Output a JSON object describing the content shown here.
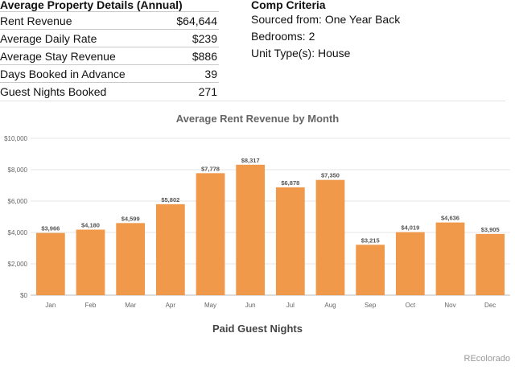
{
  "details": {
    "title": "Average Property Details (Annual)",
    "rows": [
      {
        "label": "Rent Revenue",
        "value": "$64,644"
      },
      {
        "label": "Average Daily Rate",
        "value": "$239"
      },
      {
        "label": "Average Stay Revenue",
        "value": "$886"
      },
      {
        "label": "Days Booked in Advance",
        "value": "39"
      },
      {
        "label": "Guest Nights Booked",
        "value": "271"
      }
    ]
  },
  "comp": {
    "title": "Comp Criteria",
    "lines": [
      "Sourced from: One Year Back",
      "Bedrooms: 2",
      "Unit Type(s):  House"
    ]
  },
  "chart_data": {
    "type": "bar",
    "title": "Average Rent Revenue by Month",
    "categories": [
      "Jan",
      "Feb",
      "Mar",
      "Apr",
      "May",
      "Jun",
      "Jul",
      "Aug",
      "Sep",
      "Oct",
      "Nov",
      "Dec"
    ],
    "values": [
      3966,
      4180,
      4599,
      5802,
      7778,
      8317,
      6878,
      7350,
      3215,
      4019,
      4636,
      3905
    ],
    "value_labels": [
      "$3,966",
      "$4,180",
      "$4,599",
      "$5,802",
      "$7,778",
      "$8,317",
      "$6,878",
      "$7,350",
      "$3,215",
      "$4,019",
      "$4,636",
      "$3,905"
    ],
    "ylim": [
      0,
      10000
    ],
    "yticks": [
      0,
      2000,
      4000,
      6000,
      8000,
      10000
    ],
    "ytick_labels": [
      "$0",
      "$2,000",
      "$4,000",
      "$6,000",
      "$8,000",
      "$10,000"
    ],
    "grid": true,
    "bar_color": "#f0994a"
  },
  "next_chart_title": "Paid Guest Nights",
  "brand": "REcolorado"
}
